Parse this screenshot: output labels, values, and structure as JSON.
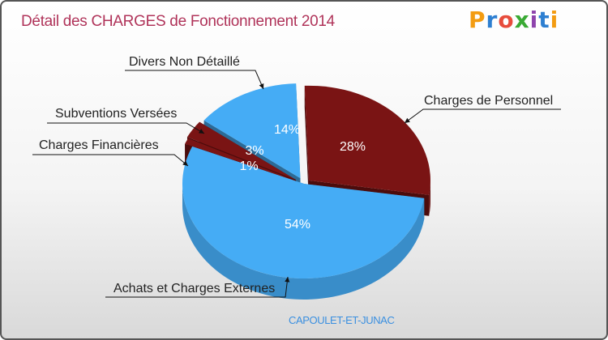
{
  "title": "Détail des CHARGES de Fonctionnement 2014",
  "brand": "Proxiti",
  "commune": "CAPOULET-ET-JUNAC",
  "chart_data": {
    "type": "pie",
    "title": "Détail des CHARGES de Fonctionnement 2014",
    "categories": [
      "Charges de Personnel",
      "Achats et Charges Externes",
      "Charges Financières",
      "Subventions Versées",
      "Divers Non Détaillé"
    ],
    "values": [
      28,
      54,
      1,
      3,
      14
    ],
    "value_labels": [
      "28%",
      "54%",
      "1%",
      "3%",
      "14%"
    ],
    "colors": [
      "#7a1414",
      "#45acf5",
      "#7a1414",
      "#7a1414",
      "#45acf5"
    ],
    "exploded": [
      true,
      false,
      true,
      true,
      true
    ]
  }
}
